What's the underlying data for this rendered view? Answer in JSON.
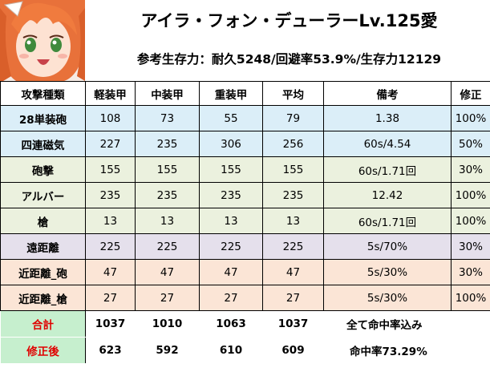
{
  "character": {
    "name": "アイラ・フォン・デューラーLv.125愛",
    "stats": "参考生存力：耐久5248/回避率53.9%/生存力12129"
  },
  "columns": [
    "攻撃種類",
    "軽装甲",
    "中装甲",
    "重装甲",
    "平均",
    "備考",
    "修正"
  ],
  "rows": [
    {
      "label": "28単装砲",
      "light": "108",
      "medium": "73",
      "heavy": "55",
      "avg": "79",
      "note": "1.38",
      "mod": "100%"
    },
    {
      "label": "四連磁気",
      "light": "227",
      "medium": "235",
      "heavy": "306",
      "avg": "256",
      "note": "60s/4.54",
      "mod": "50%"
    },
    {
      "label": "砲撃",
      "light": "155",
      "medium": "155",
      "heavy": "155",
      "avg": "155",
      "note": "60s/1.71回",
      "mod": "30%"
    },
    {
      "label": "アルバー",
      "light": "235",
      "medium": "235",
      "heavy": "235",
      "avg": "235",
      "note": "12.42",
      "mod": "100%"
    },
    {
      "label": "槍",
      "light": "13",
      "medium": "13",
      "heavy": "13",
      "avg": "13",
      "note": "60s/1.71回",
      "mod": "100%"
    },
    {
      "label": "遠距離",
      "light": "225",
      "medium": "225",
      "heavy": "225",
      "avg": "225",
      "note": "5s/70%",
      "mod": "30%"
    },
    {
      "label": "近距離_砲",
      "light": "47",
      "medium": "47",
      "heavy": "47",
      "avg": "47",
      "note": "5s/30%",
      "mod": "30%"
    },
    {
      "label": "近距離_槍",
      "light": "27",
      "medium": "27",
      "heavy": "27",
      "avg": "27",
      "note": "5s/30%",
      "mod": "100%"
    }
  ],
  "summary": {
    "total": {
      "label": "合計",
      "light": "1037",
      "medium": "1010",
      "heavy": "1063",
      "avg": "1037",
      "note": "全て命中率込み"
    },
    "corrected": {
      "label": "修正後",
      "light": "623",
      "medium": "592",
      "heavy": "610",
      "avg": "609",
      "note": "命中率73.29%"
    }
  },
  "colors": {
    "blue_row": "#dbeef8",
    "green_row": "#ebf1de",
    "purple_row": "#e5e0ec",
    "orange_row": "#fbe5d6",
    "summary_label_bg": "#c6efce",
    "summary_label_text": "#e00000"
  },
  "portrait_icon": "character-portrait"
}
